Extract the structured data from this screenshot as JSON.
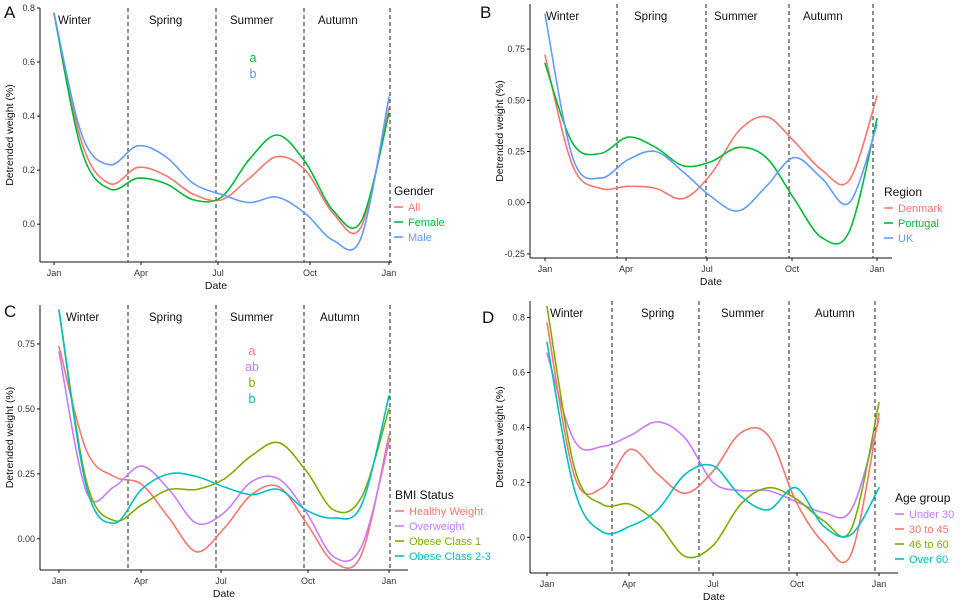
{
  "chart_data": [
    {
      "type": "line",
      "panel_label": "A",
      "xlabel": "Date",
      "ylabel": "Detrended weight (%)",
      "x_ticks": [
        "Jan",
        "Apr",
        "Jul",
        "Oct",
        "Jan"
      ],
      "y_ticks": [
        "0.0",
        "0.2",
        "0.4",
        "0.6",
        "0.8"
      ],
      "ylim": [
        -0.14,
        0.8
      ],
      "seasons": [
        "Winter",
        "Spring",
        "Summer",
        "Autumn"
      ],
      "legend_title": "Gender",
      "significance": [
        {
          "text": "a",
          "color": "#00BA38"
        },
        {
          "text": "b",
          "color": "#619CFF"
        }
      ],
      "x": [
        "Jan",
        "Feb",
        "Mar",
        "Apr",
        "May",
        "Jun",
        "Jul",
        "Aug",
        "Sep",
        "Oct",
        "Nov",
        "Dec",
        "Jan"
      ],
      "series": [
        {
          "name": "All",
          "color": "#F8766D",
          "values": [
            0.78,
            0.3,
            0.15,
            0.21,
            0.18,
            0.11,
            0.09,
            0.17,
            0.25,
            0.2,
            0.04,
            -0.01,
            0.43
          ]
        },
        {
          "name": "Female",
          "color": "#00BA38",
          "values": [
            0.78,
            0.27,
            0.13,
            0.17,
            0.15,
            0.09,
            0.1,
            0.24,
            0.33,
            0.23,
            0.05,
            0.01,
            0.41
          ]
        },
        {
          "name": "Male",
          "color": "#619CFF",
          "values": [
            0.78,
            0.33,
            0.22,
            0.29,
            0.25,
            0.15,
            0.11,
            0.08,
            0.1,
            0.04,
            -0.06,
            -0.05,
            0.47
          ]
        }
      ]
    },
    {
      "type": "line",
      "panel_label": "B",
      "xlabel": "Date",
      "ylabel": "Detrended weight (%)",
      "x_ticks": [
        "Jan",
        "Apr",
        "Jul",
        "Oct",
        "Jan"
      ],
      "y_ticks": [
        "-0.25",
        "0.00",
        "0.25",
        "0.50",
        "0.75"
      ],
      "ylim": [
        -0.27,
        0.97
      ],
      "seasons": [
        "Winter",
        "Spring",
        "Summer",
        "Autumn"
      ],
      "legend_title": "Region",
      "significance": [],
      "x": [
        "Jan",
        "Feb",
        "Mar",
        "Apr",
        "May",
        "Jun",
        "Jul",
        "Aug",
        "Sep",
        "Oct",
        "Nov",
        "Dec",
        "Jan"
      ],
      "series": [
        {
          "name": "Denmark",
          "color": "#F8766D",
          "values": [
            0.72,
            0.18,
            0.07,
            0.08,
            0.07,
            0.02,
            0.14,
            0.35,
            0.42,
            0.3,
            0.16,
            0.11,
            0.52
          ]
        },
        {
          "name": "Portugal",
          "color": "#00BA38",
          "values": [
            0.68,
            0.29,
            0.24,
            0.32,
            0.27,
            0.18,
            0.2,
            0.27,
            0.22,
            0.02,
            -0.17,
            -0.14,
            0.41
          ]
        },
        {
          "name": "UK",
          "color": "#619CFF",
          "values": [
            0.92,
            0.22,
            0.12,
            0.21,
            0.25,
            0.15,
            0.03,
            -0.04,
            0.08,
            0.22,
            0.12,
            0.0,
            0.38
          ]
        }
      ]
    },
    {
      "type": "line",
      "panel_label": "C",
      "xlabel": "Date",
      "ylabel": "Detrended weight (%)",
      "x_ticks": [
        "Jan",
        "Apr",
        "Jul",
        "Oct",
        "Jan"
      ],
      "y_ticks": [
        "0.00",
        "0.25",
        "0.50",
        "0.75"
      ],
      "ylim": [
        -0.12,
        0.9
      ],
      "seasons": [
        "Winter",
        "Spring",
        "Summer",
        "Autumn"
      ],
      "legend_title": "BMI Status",
      "significance": [
        {
          "text": "a",
          "color": "#F8766D"
        },
        {
          "text": "ab",
          "color": "#C77CFF"
        },
        {
          "text": "b",
          "color": "#7CAE00"
        },
        {
          "text": "b",
          "color": "#00BFC4"
        }
      ],
      "x": [
        "Jan",
        "Feb",
        "Mar",
        "Apr",
        "May",
        "Jun",
        "Jul",
        "Aug",
        "Sep",
        "Oct",
        "Nov",
        "Dec",
        "Jan"
      ],
      "series": [
        {
          "name": "Healthy Weight",
          "color": "#F8766D",
          "values": [
            0.74,
            0.34,
            0.24,
            0.21,
            0.08,
            -0.05,
            0.04,
            0.17,
            0.2,
            0.06,
            -0.09,
            -0.06,
            0.4
          ]
        },
        {
          "name": "Overweight",
          "color": "#C77CFF",
          "values": [
            0.72,
            0.18,
            0.2,
            0.28,
            0.19,
            0.06,
            0.1,
            0.22,
            0.23,
            0.1,
            -0.07,
            -0.03,
            0.37
          ]
        },
        {
          "name": "Obese Class 1",
          "color": "#7CAE00",
          "values": [
            0.88,
            0.22,
            0.07,
            0.13,
            0.19,
            0.19,
            0.23,
            0.32,
            0.37,
            0.26,
            0.11,
            0.16,
            0.5
          ]
        },
        {
          "name": "Obese Class 2-3",
          "color": "#00BFC4",
          "values": [
            0.88,
            0.2,
            0.06,
            0.19,
            0.25,
            0.24,
            0.2,
            0.17,
            0.19,
            0.11,
            0.08,
            0.13,
            0.55
          ]
        }
      ]
    },
    {
      "type": "line",
      "panel_label": "D",
      "xlabel": "Date",
      "ylabel": "Detrended weight (%)",
      "x_ticks": [
        "Jan",
        "Apr",
        "Jul",
        "Oct",
        "Jan"
      ],
      "y_ticks": [
        "0.0",
        "0.2",
        "0.4",
        "0.6",
        "0.8"
      ],
      "ylim": [
        -0.13,
        0.86
      ],
      "seasons": [
        "Winter",
        "Spring",
        "Summer",
        "Autumn"
      ],
      "legend_title": "Age group",
      "significance": [],
      "x": [
        "Jan",
        "Feb",
        "Mar",
        "Apr",
        "May",
        "Jun",
        "Jul",
        "Aug",
        "Sep",
        "Oct",
        "Nov",
        "Dec",
        "Jan"
      ],
      "series": [
        {
          "name": "Under 30",
          "color": "#C77CFF",
          "values": [
            0.67,
            0.35,
            0.33,
            0.37,
            0.42,
            0.36,
            0.2,
            0.17,
            0.17,
            0.13,
            0.09,
            0.1,
            0.43
          ]
        },
        {
          "name": "30 to 45",
          "color": "#F8766D",
          "values": [
            0.78,
            0.22,
            0.18,
            0.32,
            0.23,
            0.16,
            0.24,
            0.38,
            0.37,
            0.13,
            -0.02,
            -0.06,
            0.45
          ]
        },
        {
          "name": "46 to 60",
          "color": "#7CAE00",
          "values": [
            0.84,
            0.25,
            0.12,
            0.12,
            0.05,
            -0.07,
            -0.03,
            0.12,
            0.18,
            0.14,
            0.06,
            0.03,
            0.49
          ]
        },
        {
          "name": "Over 60",
          "color": "#00BFC4",
          "values": [
            0.71,
            0.17,
            0.02,
            0.04,
            0.1,
            0.23,
            0.26,
            0.15,
            0.1,
            0.18,
            0.04,
            0.01,
            0.18
          ]
        }
      ]
    }
  ]
}
